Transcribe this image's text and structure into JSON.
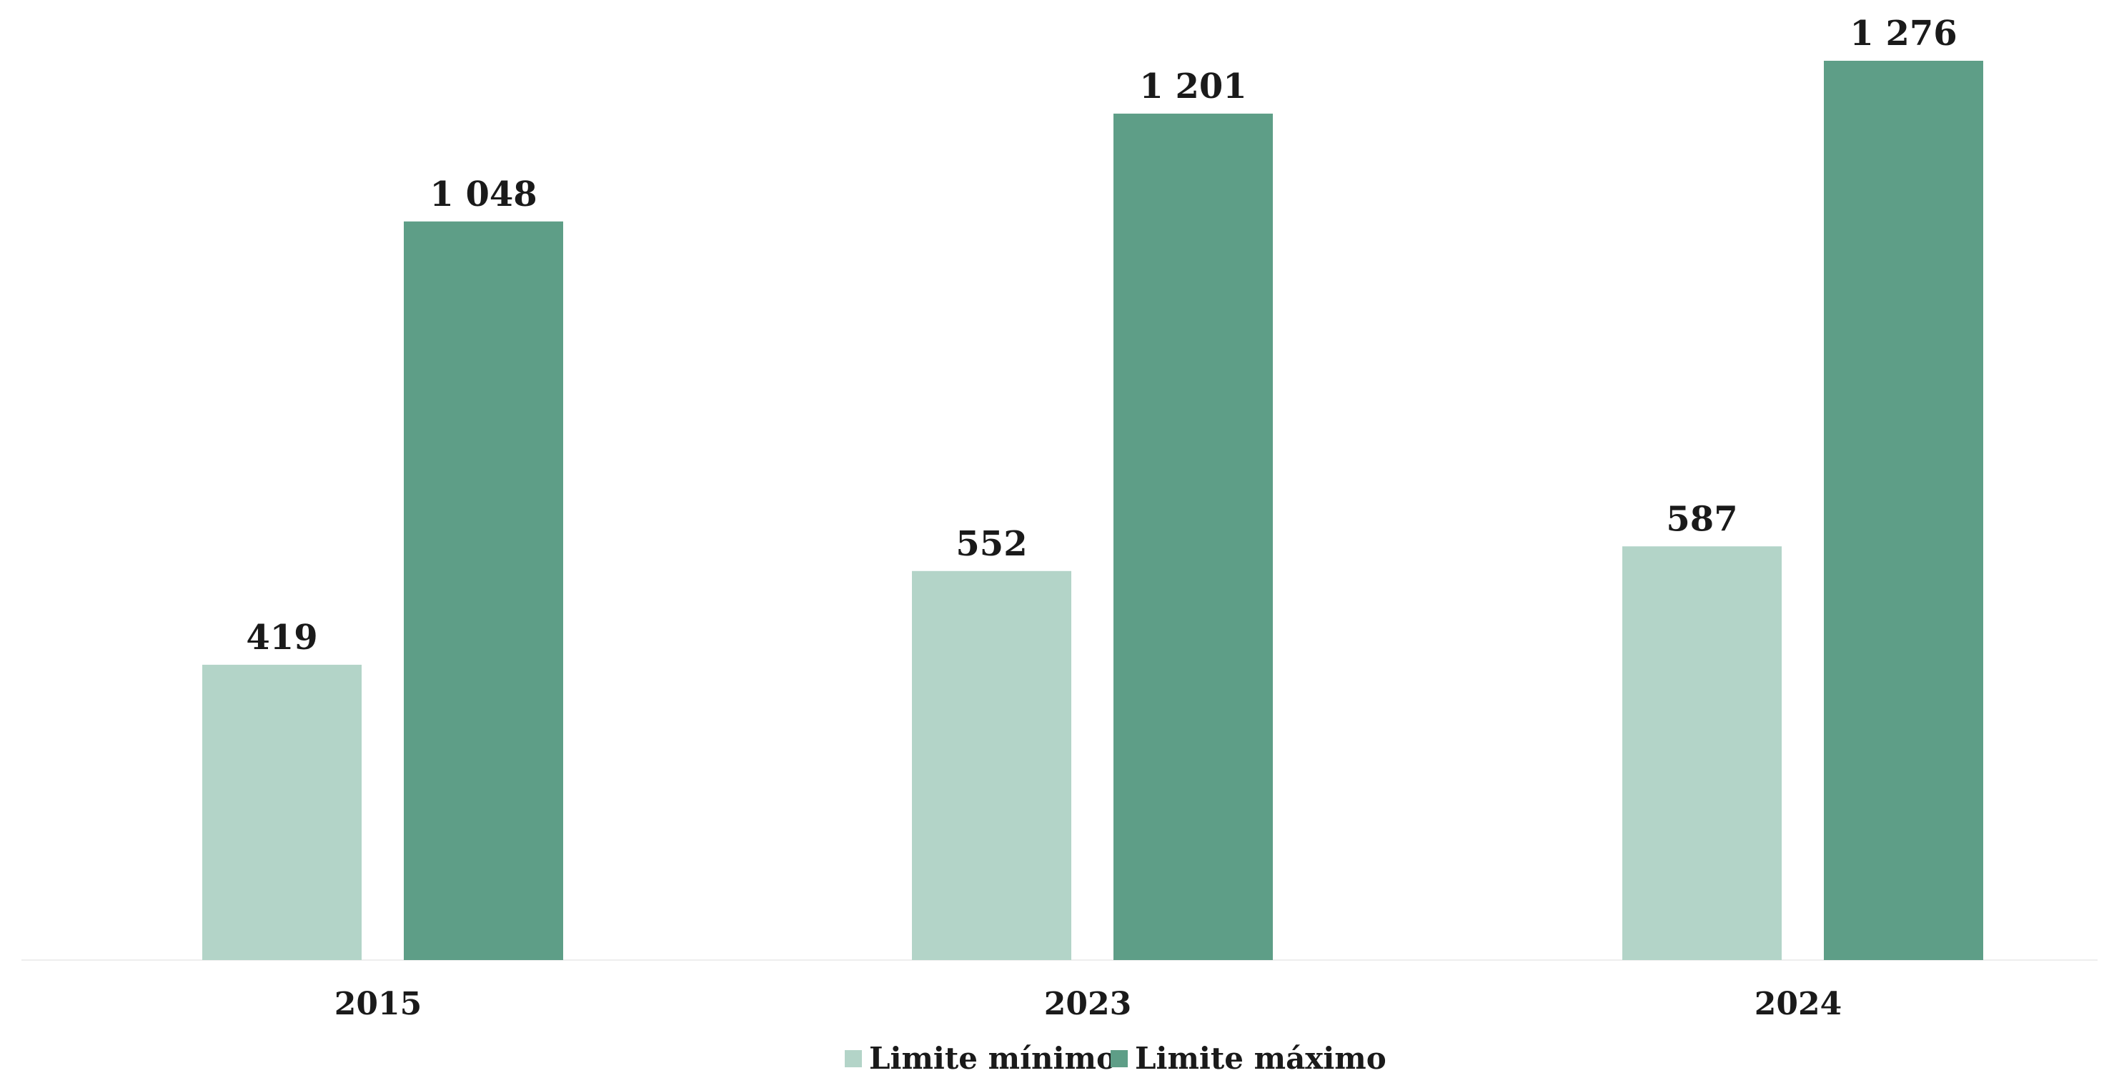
{
  "chart_data": {
    "type": "bar",
    "categories": [
      "2015",
      "2023",
      "2024"
    ],
    "series": [
      {
        "name": "Limite mínimo",
        "values": [
          419,
          552,
          587
        ],
        "labels": [
          "419",
          "552",
          "587"
        ],
        "color": "#b3d4c8"
      },
      {
        "name": "Limite máximo",
        "values": [
          1048,
          1201,
          1276
        ],
        "labels": [
          "1 048",
          "1 201",
          "1 276"
        ],
        "color": "#5e9e87"
      }
    ],
    "title": "",
    "xlabel": "",
    "ylabel": "",
    "ylim": [
      0,
      1276
    ],
    "grid": false,
    "legend": "bottom-center"
  }
}
